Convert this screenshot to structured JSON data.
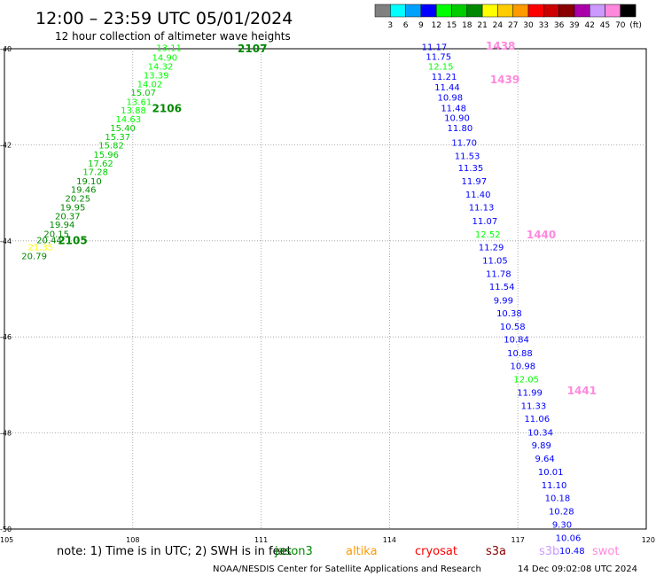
{
  "title": "12:00 – 23:59 UTC 05/01/2024",
  "subtitle": "12 hour collection of altimeter wave heights",
  "legend": {
    "labels": [
      "3",
      "6",
      "9",
      "12",
      "15",
      "18",
      "21",
      "24",
      "27",
      "30",
      "33",
      "36",
      "39",
      "42",
      "45",
      "70",
      "(ft)"
    ],
    "colors": [
      "#808080",
      "#00ffff",
      "#00a0ff",
      "#0000ff",
      "#00ff00",
      "#00cc00",
      "#008800",
      "#ffff00",
      "#ffcc00",
      "#ff9900",
      "#ff0000",
      "#cc0000",
      "#880000",
      "#aa00aa",
      "#cc99ff",
      "#ff88dd",
      "#000000"
    ]
  },
  "axes": {
    "lon_ticks": [
      "105",
      "108",
      "111",
      "114",
      "117",
      "120"
    ],
    "lat_ticks": [
      "-40",
      "-42",
      "-44",
      "-46",
      "-48",
      "-50"
    ]
  },
  "tracks": [
    {
      "id": "2107-2106-2105",
      "labels": [
        {
          "text": "2107",
          "lon": 110.45,
          "lat": -40.07,
          "color": "#008800"
        },
        {
          "text": "2106",
          "lon": 108.45,
          "lat": -41.32,
          "color": "#008800"
        },
        {
          "text": "2105",
          "lon": 106.25,
          "lat": -44.07,
          "color": "#008800"
        }
      ],
      "points": [
        {
          "v": "13.11",
          "lon": 108.55,
          "lat": -40.05,
          "color": "#00ff00"
        },
        {
          "v": "14.90",
          "lon": 108.45,
          "lat": -40.25,
          "color": "#00ff00"
        },
        {
          "v": "14.32",
          "lon": 108.35,
          "lat": -40.43,
          "color": "#00ff00"
        },
        {
          "v": "13.39",
          "lon": 108.25,
          "lat": -40.62,
          "color": "#00ff00"
        },
        {
          "v": "14.02",
          "lon": 108.1,
          "lat": -40.8,
          "color": "#00ff00"
        },
        {
          "v": "15.07",
          "lon": 107.95,
          "lat": -40.98,
          "color": "#00cc00"
        },
        {
          "v": "13.61",
          "lon": 107.85,
          "lat": -41.17,
          "color": "#00ff00"
        },
        {
          "v": "13.88",
          "lon": 107.72,
          "lat": -41.35,
          "color": "#00ff00"
        },
        {
          "v": "14.63",
          "lon": 107.6,
          "lat": -41.53,
          "color": "#00ff00"
        },
        {
          "v": "15.40",
          "lon": 107.47,
          "lat": -41.72,
          "color": "#00cc00"
        },
        {
          "v": "15.37",
          "lon": 107.35,
          "lat": -41.9,
          "color": "#00cc00"
        },
        {
          "v": "15.82",
          "lon": 107.2,
          "lat": -42.08,
          "color": "#00cc00"
        },
        {
          "v": "15.96",
          "lon": 107.08,
          "lat": -42.27,
          "color": "#00cc00"
        },
        {
          "v": "17.62",
          "lon": 106.95,
          "lat": -42.45,
          "color": "#00cc00"
        },
        {
          "v": "17.28",
          "lon": 106.83,
          "lat": -42.63,
          "color": "#00cc00"
        },
        {
          "v": "19.10",
          "lon": 106.68,
          "lat": -42.82,
          "color": "#008800"
        },
        {
          "v": "19.46",
          "lon": 106.55,
          "lat": -43.0,
          "color": "#008800"
        },
        {
          "v": "20.25",
          "lon": 106.42,
          "lat": -43.18,
          "color": "#008800"
        },
        {
          "v": "19.95",
          "lon": 106.3,
          "lat": -43.37,
          "color": "#008800"
        },
        {
          "v": "20.37",
          "lon": 106.18,
          "lat": -43.55,
          "color": "#008800"
        },
        {
          "v": "19.94",
          "lon": 106.05,
          "lat": -43.73,
          "color": "#008800"
        },
        {
          "v": "20.15",
          "lon": 105.92,
          "lat": -43.92,
          "color": "#008800"
        },
        {
          "v": "20.44",
          "lon": 105.75,
          "lat": -44.05,
          "color": "#008800"
        },
        {
          "v": "21.35",
          "lon": 105.55,
          "lat": -44.2,
          "color": "#ffff00"
        },
        {
          "v": "20.79",
          "lon": 105.4,
          "lat": -44.38,
          "color": "#008800"
        }
      ]
    },
    {
      "id": "1438-1441",
      "labels": [
        {
          "text": "1438",
          "lon": 116.25,
          "lat": -40.02,
          "color": "#ff88dd"
        },
        {
          "text": "1439",
          "lon": 116.35,
          "lat": -40.72,
          "color": "#ff88dd"
        },
        {
          "text": "1440",
          "lon": 117.2,
          "lat": -43.95,
          "color": "#ff88dd"
        },
        {
          "text": "1441",
          "lon": 118.15,
          "lat": -47.2,
          "color": "#ff88dd"
        }
      ],
      "points": [
        {
          "v": "11.17",
          "lon": 114.75,
          "lat": -40.03,
          "color": "#0000ff"
        },
        {
          "v": "11.75",
          "lon": 114.85,
          "lat": -40.23,
          "color": "#0000ff"
        },
        {
          "v": "12.15",
          "lon": 114.9,
          "lat": -40.43,
          "color": "#00ff00"
        },
        {
          "v": "11.21",
          "lon": 114.98,
          "lat": -40.65,
          "color": "#0000ff"
        },
        {
          "v": "11.44",
          "lon": 115.05,
          "lat": -40.87,
          "color": "#0000ff"
        },
        {
          "v": "10.98",
          "lon": 115.12,
          "lat": -41.08,
          "color": "#0000ff"
        },
        {
          "v": "11.48",
          "lon": 115.2,
          "lat": -41.3,
          "color": "#0000ff"
        },
        {
          "v": "10.90",
          "lon": 115.28,
          "lat": -41.5,
          "color": "#0000ff"
        },
        {
          "v": "11.80",
          "lon": 115.35,
          "lat": -41.72,
          "color": "#0000ff"
        },
        {
          "v": "11.70",
          "lon": 115.45,
          "lat": -42.02,
          "color": "#0000ff"
        },
        {
          "v": "11.53",
          "lon": 115.52,
          "lat": -42.3,
          "color": "#0000ff"
        },
        {
          "v": "11.35",
          "lon": 115.6,
          "lat": -42.55,
          "color": "#0000ff"
        },
        {
          "v": "11.97",
          "lon": 115.68,
          "lat": -42.82,
          "color": "#0000ff"
        },
        {
          "v": "11.40",
          "lon": 115.77,
          "lat": -43.1,
          "color": "#0000ff"
        },
        {
          "v": "11.13",
          "lon": 115.85,
          "lat": -43.37,
          "color": "#0000ff"
        },
        {
          "v": "11.07",
          "lon": 115.93,
          "lat": -43.65,
          "color": "#0000ff"
        },
        {
          "v": "12.52",
          "lon": 116.0,
          "lat": -43.93,
          "color": "#00ff00"
        },
        {
          "v": "11.29",
          "lon": 116.08,
          "lat": -44.2,
          "color": "#0000ff"
        },
        {
          "v": "11.05",
          "lon": 116.17,
          "lat": -44.47,
          "color": "#0000ff"
        },
        {
          "v": "11.78",
          "lon": 116.25,
          "lat": -44.75,
          "color": "#0000ff"
        },
        {
          "v": "11.54",
          "lon": 116.33,
          "lat": -45.02,
          "color": "#0000ff"
        },
        {
          "v": "9.99",
          "lon": 116.43,
          "lat": -45.3,
          "color": "#0000ff"
        },
        {
          "v": "10.38",
          "lon": 116.5,
          "lat": -45.57,
          "color": "#0000ff"
        },
        {
          "v": "10.58",
          "lon": 116.58,
          "lat": -45.85,
          "color": "#0000ff"
        },
        {
          "v": "10.84",
          "lon": 116.67,
          "lat": -46.12,
          "color": "#0000ff"
        },
        {
          "v": "10.88",
          "lon": 116.75,
          "lat": -46.4,
          "color": "#0000ff"
        },
        {
          "v": "10.98",
          "lon": 116.82,
          "lat": -46.67,
          "color": "#0000ff"
        },
        {
          "v": "12.05",
          "lon": 116.9,
          "lat": -46.95,
          "color": "#00ff00"
        },
        {
          "v": "11.99",
          "lon": 116.98,
          "lat": -47.22,
          "color": "#0000ff"
        },
        {
          "v": "11.33",
          "lon": 117.07,
          "lat": -47.5,
          "color": "#0000ff"
        },
        {
          "v": "11.06",
          "lon": 117.15,
          "lat": -47.77,
          "color": "#0000ff"
        },
        {
          "v": "10.34",
          "lon": 117.23,
          "lat": -48.05,
          "color": "#0000ff"
        },
        {
          "v": "9.89",
          "lon": 117.32,
          "lat": -48.32,
          "color": "#0000ff"
        },
        {
          "v": "9.64",
          "lon": 117.4,
          "lat": -48.6,
          "color": "#0000ff"
        },
        {
          "v": "10.01",
          "lon": 117.47,
          "lat": -48.87,
          "color": "#0000ff"
        },
        {
          "v": "11.10",
          "lon": 117.55,
          "lat": -49.15,
          "color": "#0000ff"
        },
        {
          "v": "10.18",
          "lon": 117.63,
          "lat": -49.42,
          "color": "#0000ff"
        },
        {
          "v": "10.28",
          "lon": 117.72,
          "lat": -49.7,
          "color": "#0000ff"
        },
        {
          "v": "9.30",
          "lon": 117.8,
          "lat": -49.97,
          "color": "#0000ff"
        },
        {
          "v": "10.06",
          "lon": 117.88,
          "lat": -50.25,
          "color": "#0000ff"
        },
        {
          "v": "10.48",
          "lon": 117.97,
          "lat": -50.52,
          "color": "#0000ff"
        }
      ]
    }
  ],
  "footer": {
    "note": "note:  1) Time is in UTC; 2) SWH is in feet",
    "satellites": [
      {
        "name": "jason3",
        "color": "#008800"
      },
      {
        "name": "altika",
        "color": "#ff9900"
      },
      {
        "name": "cryosat",
        "color": "#ff0000"
      },
      {
        "name": "s3a",
        "color": "#880000"
      },
      {
        "name": "s3b",
        "color": "#cc99ff"
      },
      {
        "name": "swot",
        "color": "#ff88dd"
      }
    ],
    "credit": "NOAA/NESDIS Center for Satellite Applications and Research",
    "timestamp": "14 Dec 09:02:08 UTC 2024"
  }
}
